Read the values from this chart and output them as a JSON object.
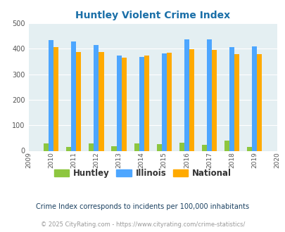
{
  "title": "Huntley Violent Crime Index",
  "all_years": [
    2009,
    2010,
    2011,
    2012,
    2013,
    2014,
    2015,
    2016,
    2017,
    2018,
    2019,
    2020
  ],
  "data_years": [
    2010,
    2011,
    2012,
    2013,
    2014,
    2015,
    2016,
    2017,
    2018,
    2019
  ],
  "huntley": [
    30,
    15,
    30,
    18,
    30,
    27,
    32,
    24,
    40,
    15
  ],
  "illinois": [
    434,
    428,
    415,
    372,
    369,
    382,
    438,
    438,
    405,
    408
  ],
  "national": [
    405,
    386,
    387,
    365,
    374,
    383,
    397,
    394,
    379,
    379
  ],
  "bar_color_huntley": "#8dc63f",
  "bar_color_illinois": "#4da6ff",
  "bar_color_national": "#ffaa00",
  "bg_color": "#e4eff2",
  "ylim": [
    0,
    500
  ],
  "yticks": [
    0,
    100,
    200,
    300,
    400,
    500
  ],
  "legend_labels": [
    "Huntley",
    "Illinois",
    "National"
  ],
  "footnote1": "Crime Index corresponds to incidents per 100,000 inhabitants",
  "footnote2": "© 2025 CityRating.com - https://www.cityrating.com/crime-statistics/",
  "title_color": "#1a6fa8",
  "footnote1_color": "#1a4060",
  "footnote2_color": "#999999",
  "bar_width": 0.22
}
